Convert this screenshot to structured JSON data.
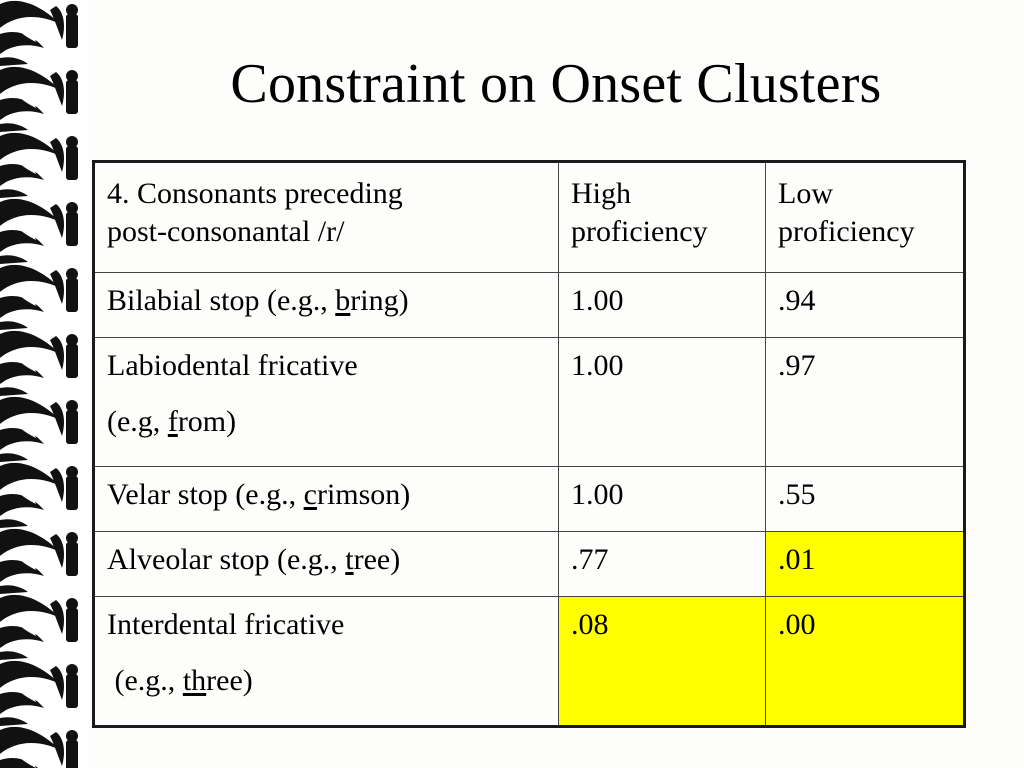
{
  "slide": {
    "title": "Constraint on Onset Clusters"
  },
  "table": {
    "headers": {
      "col1_line1": "4. Consonants preceding",
      "col1_line2": "post-consonantal /r/",
      "col2_line1": "High",
      "col2_line2": "proficiency",
      "col3_line1": "Low",
      "col3_line2": "proficiency"
    },
    "rows": [
      {
        "pre": "Bilabial stop (e.g., ",
        "underlined": "b",
        "post": "ring)",
        "high": "1.00",
        "low": ".94"
      },
      {
        "line1": "Labiodental fricative",
        "pre": "(e.g, ",
        "underlined": "f",
        "post": "rom)",
        "high": "1.00",
        "low": ".97"
      },
      {
        "pre": "Velar stop (e.g., ",
        "underlined": "c",
        "post": "rimson)",
        "high": "1.00",
        "low": ".55"
      },
      {
        "pre": "Alveolar stop (e.g., ",
        "underlined": "t",
        "post": "ree)",
        "high": ".77",
        "low": ".01"
      },
      {
        "line1": "Interdental fricative",
        "pre": " (e.g., ",
        "underlined": "th",
        "post": "ree)",
        "high": ".08",
        "low": ".00"
      }
    ],
    "highlight_color": "#ffff00"
  },
  "decor": {
    "left_border": "black-white-ornamental-strip"
  }
}
